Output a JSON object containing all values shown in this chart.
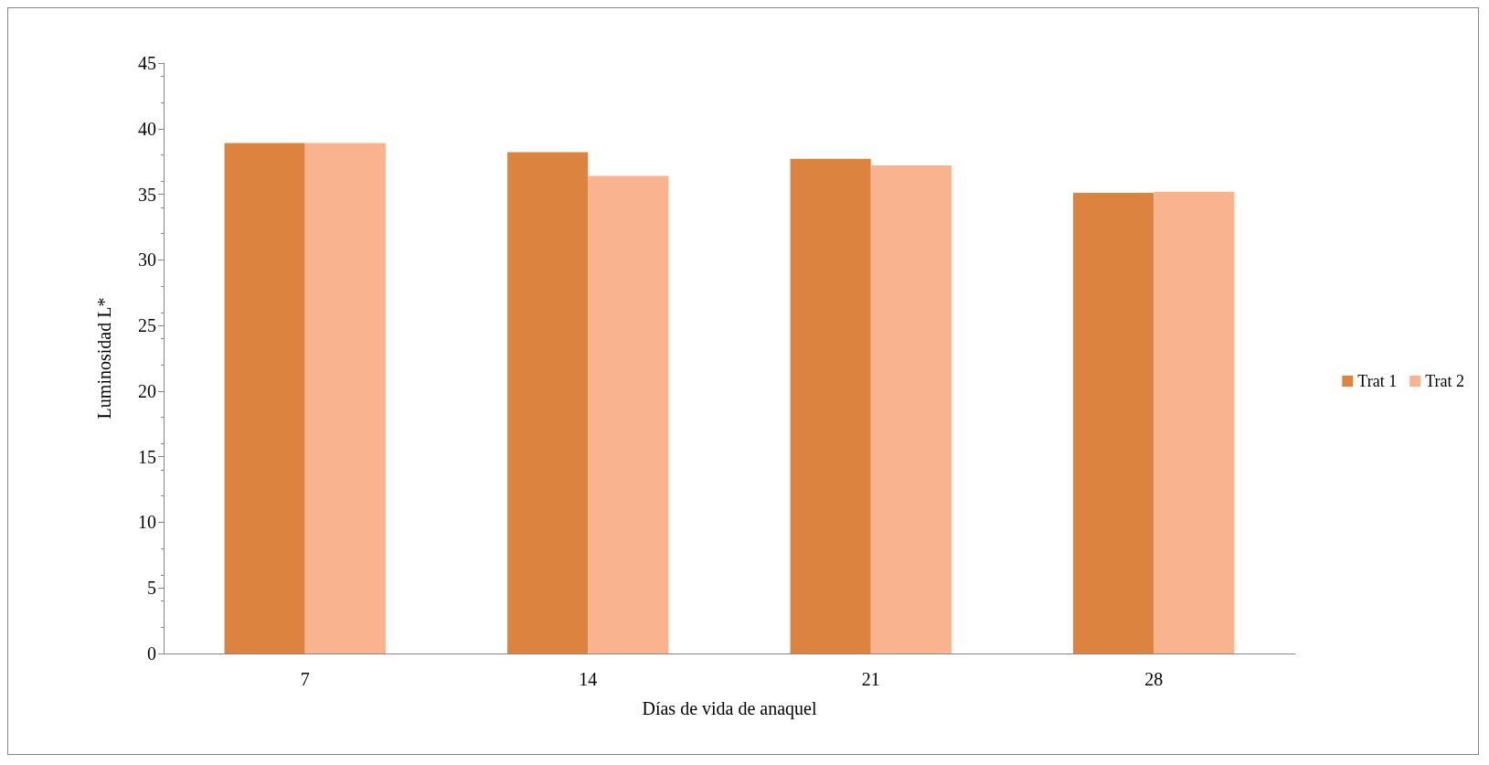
{
  "chart_data": {
    "type": "bar",
    "xlabel": "Días de vida de anaquel",
    "ylabel": "Luminosidad L*",
    "categories": [
      "7",
      "14",
      "21",
      "28"
    ],
    "series": [
      {
        "name": "Trat 1",
        "color": "#dc843f",
        "values": [
          38.9,
          38.2,
          37.7,
          35.1
        ]
      },
      {
        "name": "Trat 2",
        "color": "#f9b48f",
        "values": [
          38.9,
          36.4,
          37.2,
          35.2
        ]
      }
    ],
    "ylim": [
      0,
      45
    ],
    "yticks": [
      0,
      5,
      10,
      15,
      20,
      25,
      30,
      35,
      40,
      45
    ],
    "grid": false,
    "legend": "right"
  }
}
